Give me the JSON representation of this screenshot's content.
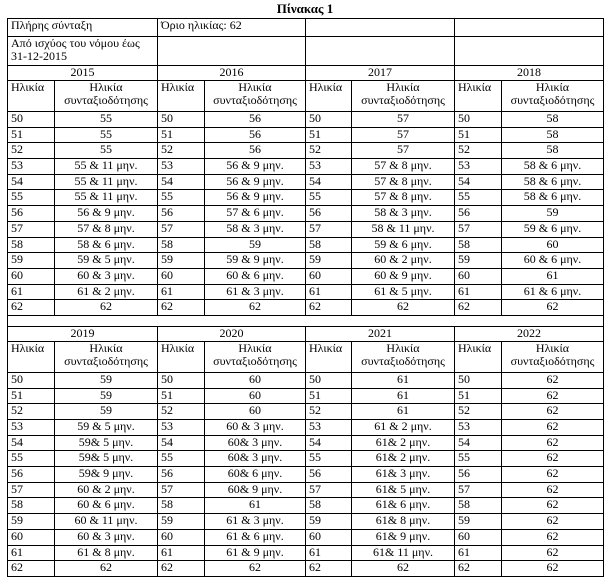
{
  "title": "Πίνακας 1",
  "header": {
    "pension": "Πλήρης σύνταξη",
    "age_limit": "Όριο ηλικίας: 62",
    "period": "Από ισχύος  του νόμου έως 31-12-2015"
  },
  "columns": {
    "age": "Ηλικία",
    "pension_age": "Ηλικία συνταξιοδότησης"
  },
  "ages": [
    50,
    51,
    52,
    53,
    54,
    55,
    56,
    57,
    58,
    59,
    60,
    61,
    62
  ],
  "blocks": [
    {
      "years": [
        {
          "year": 2015,
          "values": [
            "55",
            "55",
            "55",
            "55 & 11 μην.",
            "55 & 11 μην.",
            "55 & 11 μην.",
            "56 & 9 μην.",
            "57 & 8 μην.",
            "58 & 6 μην.",
            "59 & 5 μην.",
            "60 & 3 μην.",
            "61 & 2 μην.",
            "62"
          ]
        },
        {
          "year": 2016,
          "values": [
            "56",
            "56",
            "56",
            "56 & 9 μην.",
            "56 & 9 μην.",
            "56 & 9 μην.",
            "57 & 6 μην.",
            "58 & 3 μην.",
            "59",
            "59 & 9 μην.",
            "60 & 6 μην.",
            "61 & 3 μην.",
            "62"
          ]
        },
        {
          "year": 2017,
          "values": [
            "57",
            "57",
            "57",
            "57 & 8 μην.",
            "57 & 8 μην.",
            "57 & 8 μην.",
            "58 & 3 μην.",
            "58 & 11 μην.",
            "59 & 6 μην.",
            "60 & 2 μην.",
            "60 & 9 μην.",
            "61 & 5 μην.",
            "62"
          ]
        },
        {
          "year": 2018,
          "values": [
            "58",
            "58",
            "58",
            "58 & 6 μην.",
            "58 & 6 μην.",
            "58 & 6 μην.",
            "59",
            "59 & 6 μην.",
            "60",
            "60 & 6 μην.",
            "61",
            "61 & 6 μην.",
            "62"
          ]
        }
      ]
    },
    {
      "years": [
        {
          "year": 2019,
          "values": [
            "59",
            "59",
            "59",
            "59 & 5 μην.",
            "59& 5 μην.",
            "59& 5 μην.",
            "59& 9 μην.",
            "60 & 2 μην.",
            "60 & 6 μην.",
            "60 & 11 μην.",
            "60 & 3 μην.",
            "61 & 8 μην.",
            "62"
          ]
        },
        {
          "year": 2020,
          "values": [
            "60",
            "60",
            "60",
            "60 & 3 μην.",
            "60& 3 μην.",
            "60& 3 μην.",
            "60& 6 μην.",
            "60& 9 μην.",
            "61",
            "61 & 3 μην.",
            "61 & 6 μην.",
            "61 & 9 μην.",
            "62"
          ]
        },
        {
          "year": 2021,
          "values": [
            "61",
            "61",
            "61",
            "61 & 2 μην.",
            "61& 2 μην.",
            "61& 2 μην.",
            "61& 3 μην.",
            "61& 5 μην.",
            "61& 6 μην.",
            "61& 8 μην.",
            "61& 9 μην.",
            "61& 11 μην.",
            "62"
          ]
        },
        {
          "year": 2022,
          "values": [
            "62",
            "62",
            "62",
            "62",
            "62",
            "62",
            "62",
            "62",
            "62",
            "62",
            "62",
            "62",
            "62"
          ]
        }
      ]
    }
  ]
}
